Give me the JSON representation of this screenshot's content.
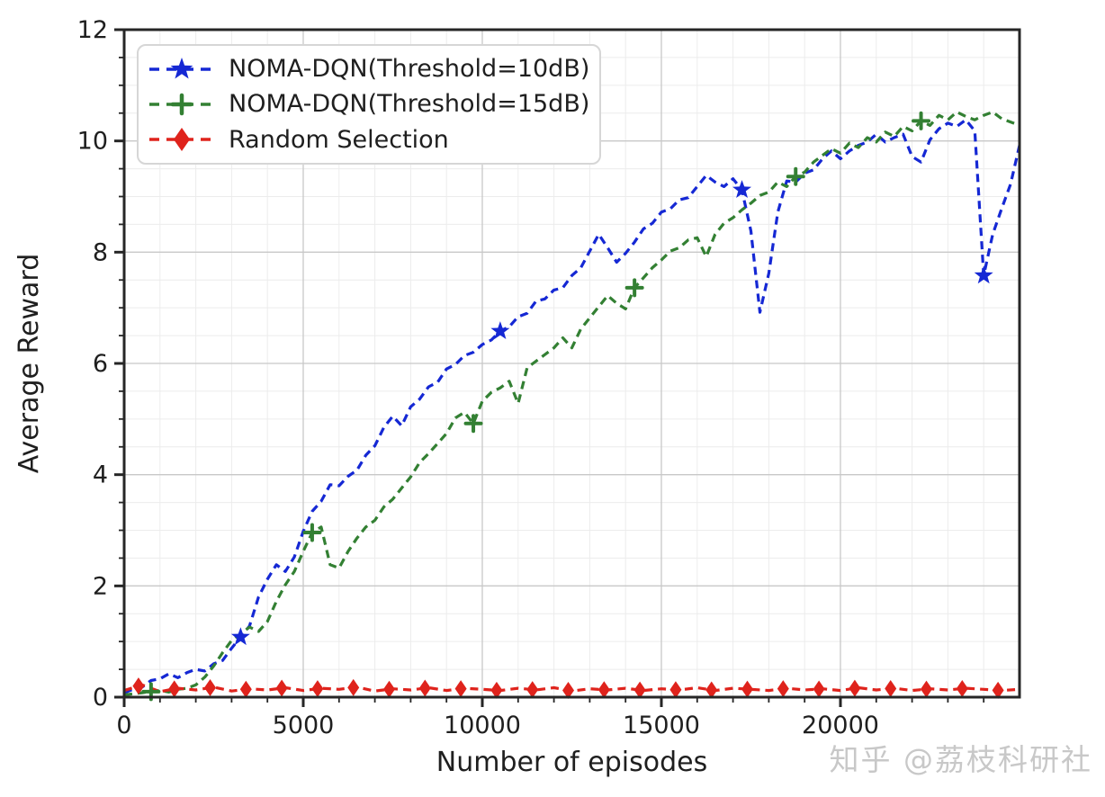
{
  "page": {
    "watermark": "知乎 @荔枝科研社"
  },
  "chart_data": {
    "type": "line",
    "title": "",
    "xlabel": "Number of episodes",
    "ylabel": "Average Reward",
    "xlim": [
      0,
      25000
    ],
    "ylim": [
      0,
      12
    ],
    "x_major_ticks": [
      0,
      5000,
      10000,
      15000,
      20000
    ],
    "x_minor_step": 1000,
    "y_major_ticks": [
      0,
      2,
      4,
      6,
      8,
      10,
      12
    ],
    "y_minor_step": 0.5,
    "grid": {
      "major_color": "#c8c8c8",
      "minor_color": "#ececec",
      "on": true
    },
    "legend_position": "upper-left",
    "axis_color": "#262626",
    "series": [
      {
        "name": "NOMA-DQN(Threshold=10dB)",
        "color": "#1528d4",
        "marker": "star",
        "linestyle": "dashed",
        "x_start": 0,
        "x_step": 250,
        "values": [
          0.08,
          0.14,
          0.18,
          0.3,
          0.33,
          0.42,
          0.35,
          0.44,
          0.5,
          0.47,
          0.6,
          0.66,
          0.88,
          1.08,
          1.28,
          1.8,
          2.12,
          2.38,
          2.26,
          2.52,
          2.98,
          3.34,
          3.52,
          3.82,
          3.8,
          3.97,
          4.08,
          4.35,
          4.52,
          4.85,
          5.05,
          4.88,
          5.22,
          5.36,
          5.58,
          5.66,
          5.9,
          5.98,
          6.14,
          6.2,
          6.34,
          6.42,
          6.58,
          6.66,
          6.84,
          6.9,
          7.12,
          7.16,
          7.32,
          7.36,
          7.58,
          7.72,
          8.02,
          8.32,
          8.08,
          7.82,
          7.98,
          8.18,
          8.42,
          8.52,
          8.72,
          8.78,
          8.94,
          8.98,
          9.18,
          9.38,
          9.26,
          9.18,
          9.32,
          9.12,
          8.38,
          6.92,
          7.62,
          8.72,
          9.28,
          9.26,
          9.42,
          9.48,
          9.68,
          9.82,
          9.68,
          9.82,
          9.92,
          9.98,
          10.12,
          9.98,
          10.06,
          10.12,
          9.72,
          9.62,
          10.02,
          10.22,
          10.32,
          10.26,
          10.38,
          10.18,
          7.58,
          8.32,
          8.78,
          9.22,
          9.92
        ],
        "marker_x": [
          3250,
          10500,
          17250,
          24000
        ]
      },
      {
        "name": "NOMA-DQN(Threshold=15dB)",
        "color": "#338033",
        "marker": "plus",
        "linestyle": "dashed",
        "x_start": 0,
        "x_step": 250,
        "values": [
          0.04,
          0.06,
          0.08,
          0.1,
          0.12,
          0.09,
          0.14,
          0.16,
          0.22,
          0.36,
          0.56,
          0.8,
          1.02,
          1.14,
          1.26,
          1.18,
          1.36,
          1.72,
          2.02,
          2.26,
          2.62,
          2.96,
          3.06,
          2.38,
          2.32,
          2.62,
          2.86,
          3.06,
          3.18,
          3.42,
          3.56,
          3.76,
          3.96,
          4.22,
          4.38,
          4.56,
          4.74,
          5.02,
          5.12,
          4.92,
          5.32,
          5.48,
          5.56,
          5.68,
          5.28,
          5.92,
          6.04,
          6.16,
          6.28,
          6.46,
          6.28,
          6.62,
          6.82,
          7.02,
          7.22,
          7.08,
          6.98,
          7.36,
          7.54,
          7.72,
          7.86,
          8.02,
          8.08,
          8.22,
          8.26,
          7.92,
          8.32,
          8.52,
          8.62,
          8.76,
          8.88,
          9.02,
          9.08,
          9.26,
          9.18,
          9.36,
          9.44,
          9.62,
          9.74,
          9.86,
          9.78,
          9.96,
          9.88,
          10.06,
          9.98,
          10.16,
          10.08,
          10.26,
          10.18,
          10.36,
          10.28,
          10.46,
          10.38,
          10.52,
          10.44,
          10.38,
          10.46,
          10.52,
          10.4,
          10.34,
          10.28
        ],
        "marker_x": [
          750,
          5250,
          9750,
          14250,
          18750,
          22250
        ]
      },
      {
        "name": "Random Selection",
        "color": "#df231c",
        "marker": "diamond",
        "linestyle": "dashed",
        "x_start": 0,
        "x_step": 500,
        "values": [
          0.12,
          0.22,
          0.1,
          0.16,
          0.13,
          0.18,
          0.11,
          0.15,
          0.13,
          0.17,
          0.12,
          0.16,
          0.14,
          0.18,
          0.11,
          0.15,
          0.13,
          0.17,
          0.12,
          0.16,
          0.14,
          0.12,
          0.16,
          0.13,
          0.17,
          0.11,
          0.15,
          0.13,
          0.16,
          0.12,
          0.15,
          0.13,
          0.17,
          0.12,
          0.16,
          0.14,
          0.12,
          0.16,
          0.13,
          0.15,
          0.12,
          0.17,
          0.13,
          0.16,
          0.12,
          0.15,
          0.13,
          0.16,
          0.14,
          0.12,
          0.14
        ],
        "marker_x": [
          400,
          1400,
          2400,
          3400,
          4400,
          5400,
          6400,
          7400,
          8400,
          9400,
          10400,
          11400,
          12400,
          13400,
          14400,
          15400,
          16400,
          17400,
          18400,
          19400,
          20400,
          21400,
          22400,
          23400,
          24400
        ]
      }
    ]
  }
}
